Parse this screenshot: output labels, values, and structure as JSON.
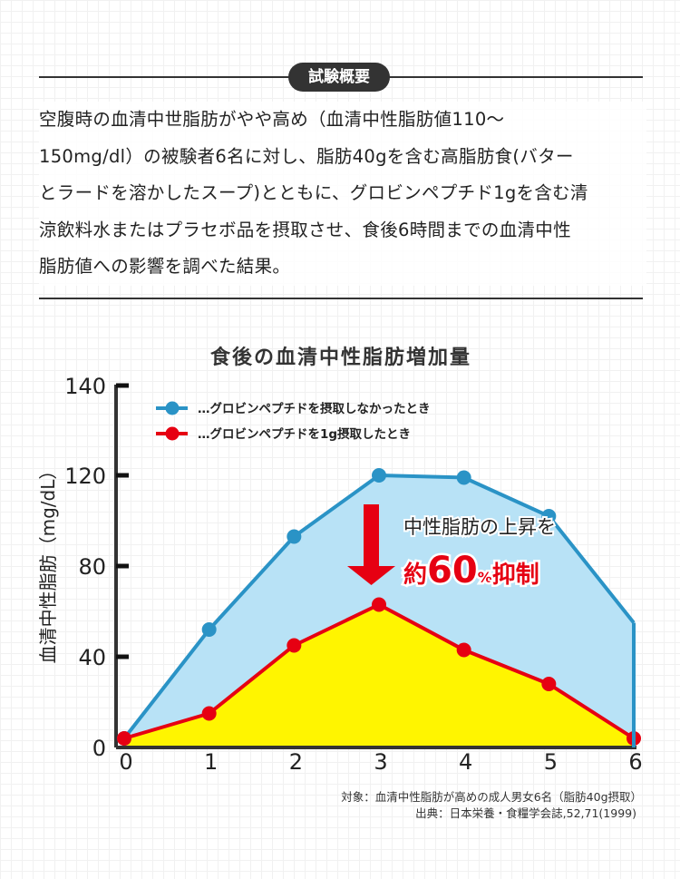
{
  "section": {
    "badge": "試験概要",
    "lines": [
      "空腹時の血清中世脂肪がやや高め（血清中性脂肪値110〜",
      "150mg/dl）の被験者6名に対し、脂肪40gを含む高脂肪食(バター",
      "とラードを溶かしたスープ)とともに、グロビンペプチド1gを含む清",
      "涼飲料水またはプラセボ品を摂取させ、食後6時間までの血清中性",
      "脂肪値への影響を調べた結果。"
    ]
  },
  "chart_data": {
    "type": "area",
    "title": "食後の血清中性脂肪増加量",
    "ylabel": "血清中性脂肪（mg/dL）",
    "xlabel": "",
    "x": [
      0,
      1,
      2,
      3,
      4,
      5,
      6
    ],
    "xticks": [
      "0",
      "1",
      "2",
      "3",
      "4",
      "5",
      "6"
    ],
    "yticks": [
      0,
      40,
      80,
      120,
      140
    ],
    "ylim": [
      0,
      140
    ],
    "grid": false,
    "legend_position": "top-left",
    "series": [
      {
        "name": "…グロビンペプチドを摂取しなかったとき",
        "color": "#2a93c6",
        "fill": "#b8e2f6",
        "values": [
          4,
          52,
          93,
          120,
          119,
          102,
          55
        ]
      },
      {
        "name": "…グロビンペプチドを1g摂取したとき",
        "color": "#e60012",
        "fill": "#fff500",
        "values": [
          4,
          15,
          45,
          63,
          43,
          28,
          4
        ]
      }
    ],
    "annotation": {
      "line1": "中性脂肪の上昇を",
      "prefix": "約",
      "number": "60",
      "unit": "%",
      "suffix": "抑制",
      "color": "#e60012"
    },
    "notes": [
      "対象：血清中性脂肪が高めの成人男女6名（脂肪40g摂取）",
      "出典：日本栄養・食糧学会誌,52,71(1999)"
    ]
  }
}
